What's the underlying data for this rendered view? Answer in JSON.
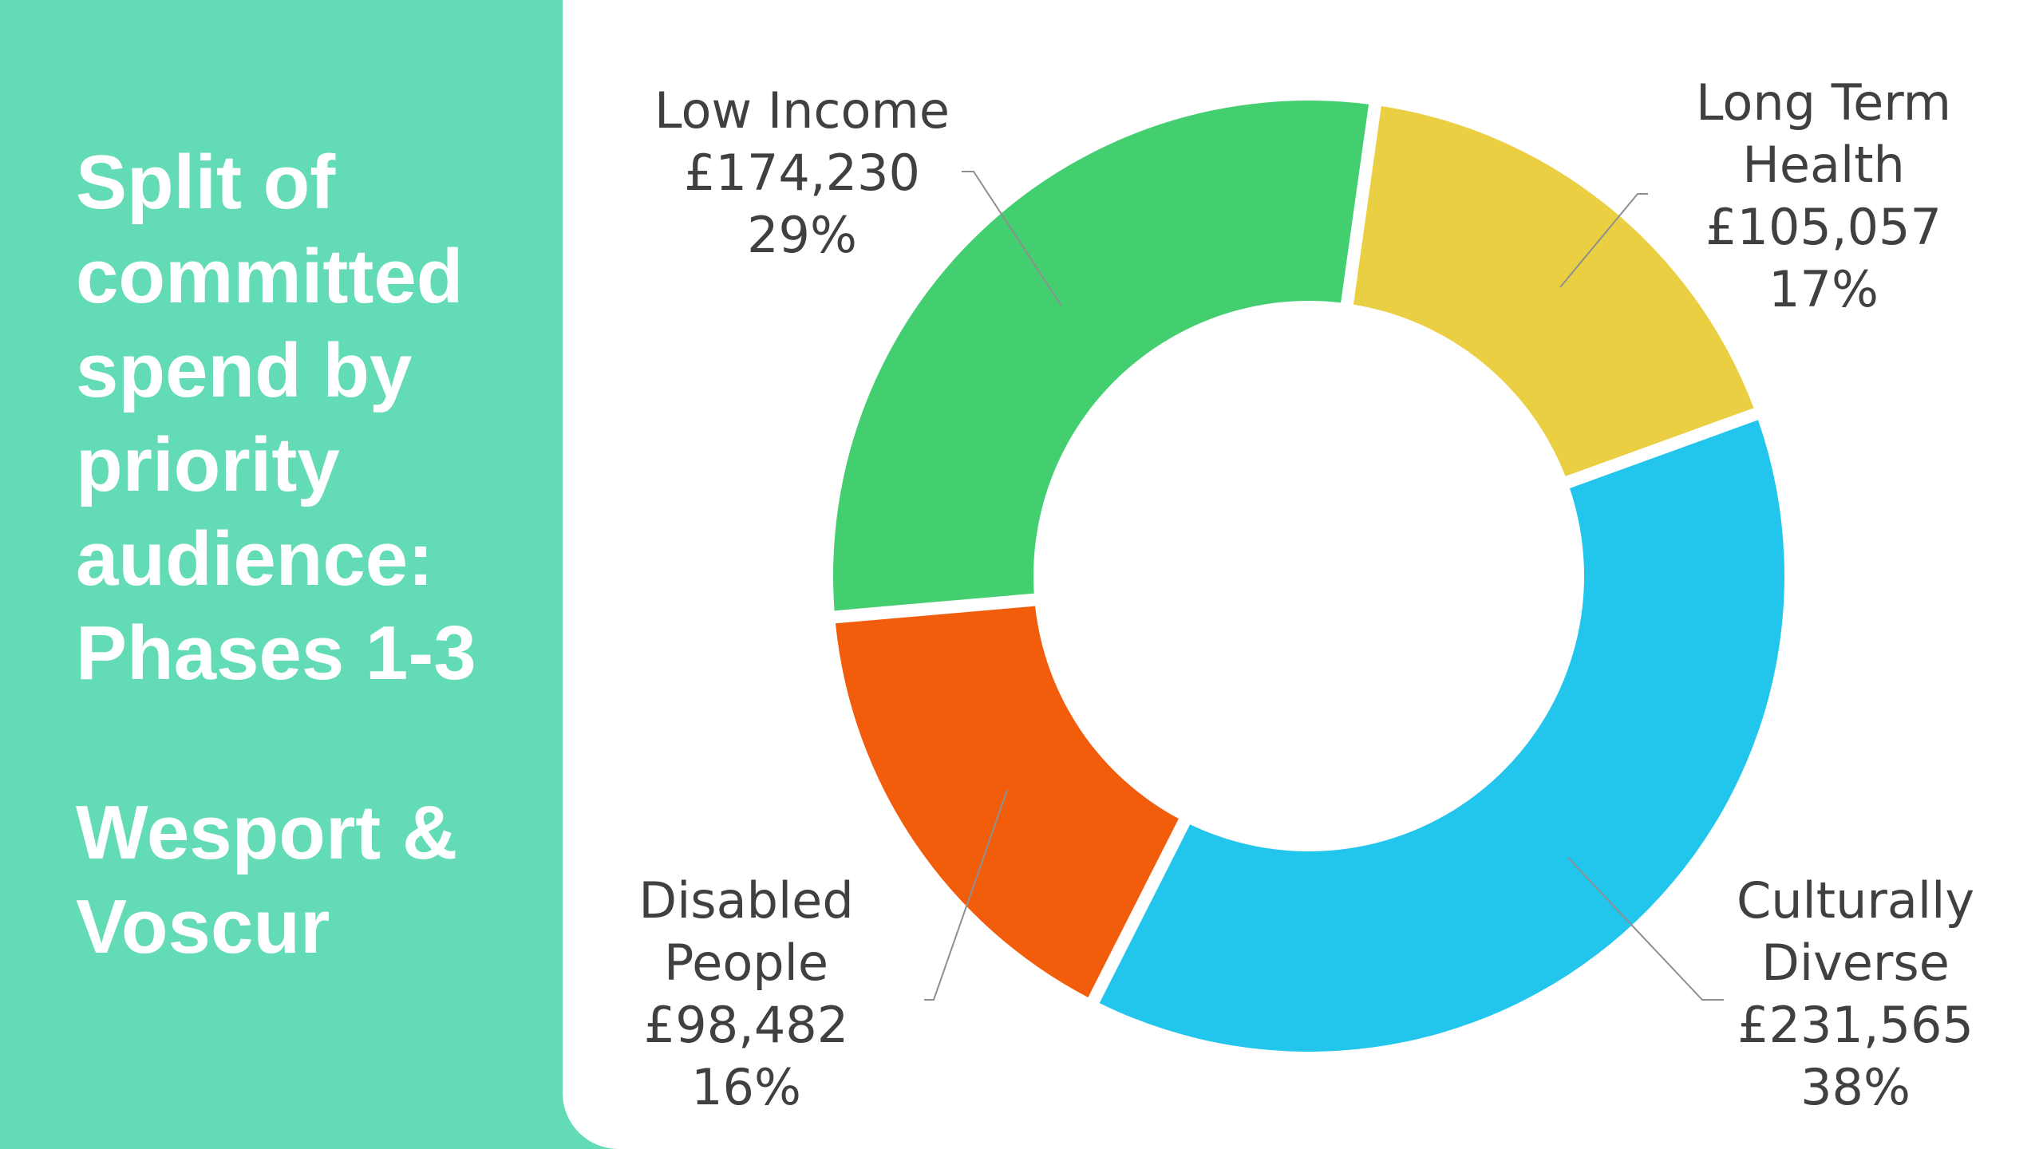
{
  "title_lines": [
    "Split of",
    "committed",
    "spend by",
    "priority",
    "audience:",
    "Phases 1-3"
  ],
  "subtitle_lines": [
    "Wesport &",
    "Voscur"
  ],
  "chart_data": {
    "type": "donut",
    "title": "Split of committed spend by priority audience: Phases 1-3",
    "subtitle": "Wesport & Voscur",
    "currency": "£",
    "slices": [
      {
        "name_lines": [
          "Long Term",
          "Health"
        ],
        "name": "Long Term Health",
        "value": 105057,
        "value_label": "£105,057",
        "percent": 17,
        "percent_label": "17%",
        "color": "#ebcf43"
      },
      {
        "name_lines": [
          "Culturally",
          "Diverse"
        ],
        "name": "Culturally Diverse",
        "value": 231565,
        "value_label": "£231,565",
        "percent": 38,
        "percent_label": "38%",
        "color": "#22c6ec"
      },
      {
        "name_lines": [
          "Disabled",
          "People"
        ],
        "name": "Disabled People",
        "value": 98482,
        "value_label": "£98,482",
        "percent": 16,
        "percent_label": "16%",
        "color": "#f25d0c"
      },
      {
        "name_lines": [
          "Low Income"
        ],
        "name": "Low Income",
        "value": 174230,
        "value_label": "£174,230",
        "percent": 29,
        "percent_label": "29%",
        "color": "#43cf70"
      }
    ]
  }
}
